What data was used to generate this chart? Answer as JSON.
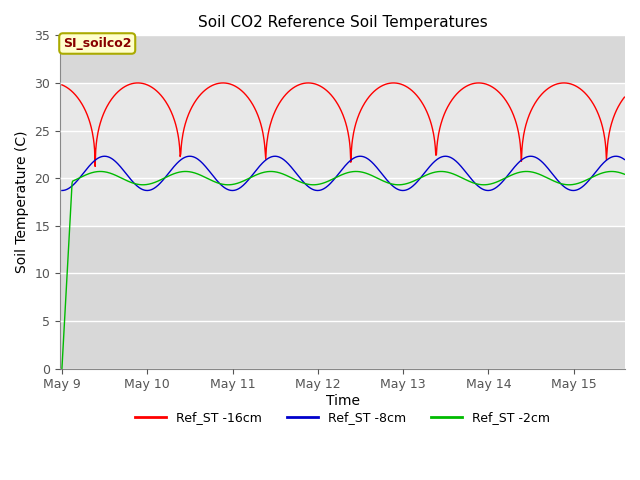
{
  "title": "Soil CO2 Reference Soil Temperatures",
  "xlabel": "Time",
  "ylabel": "Soil Temperature (C)",
  "ylim": [
    0,
    35
  ],
  "yticks": [
    0,
    5,
    10,
    15,
    20,
    25,
    30,
    35
  ],
  "background_color": "#ffffff",
  "plot_bg_color": "#d8d8d8",
  "shaded_band_color": "#e8e8e8",
  "shaded_band": [
    15,
    30
  ],
  "annotation_label": "SI_soilco2",
  "annotation_color": "#880000",
  "annotation_bg": "#ffffcc",
  "annotation_border": "#aaaa00",
  "legend": [
    "Ref_ST -16cm",
    "Ref_ST -8cm",
    "Ref_ST -2cm"
  ],
  "line_colors": [
    "#ff0000",
    "#0000cc",
    "#00bb00"
  ],
  "n_points": 1000
}
